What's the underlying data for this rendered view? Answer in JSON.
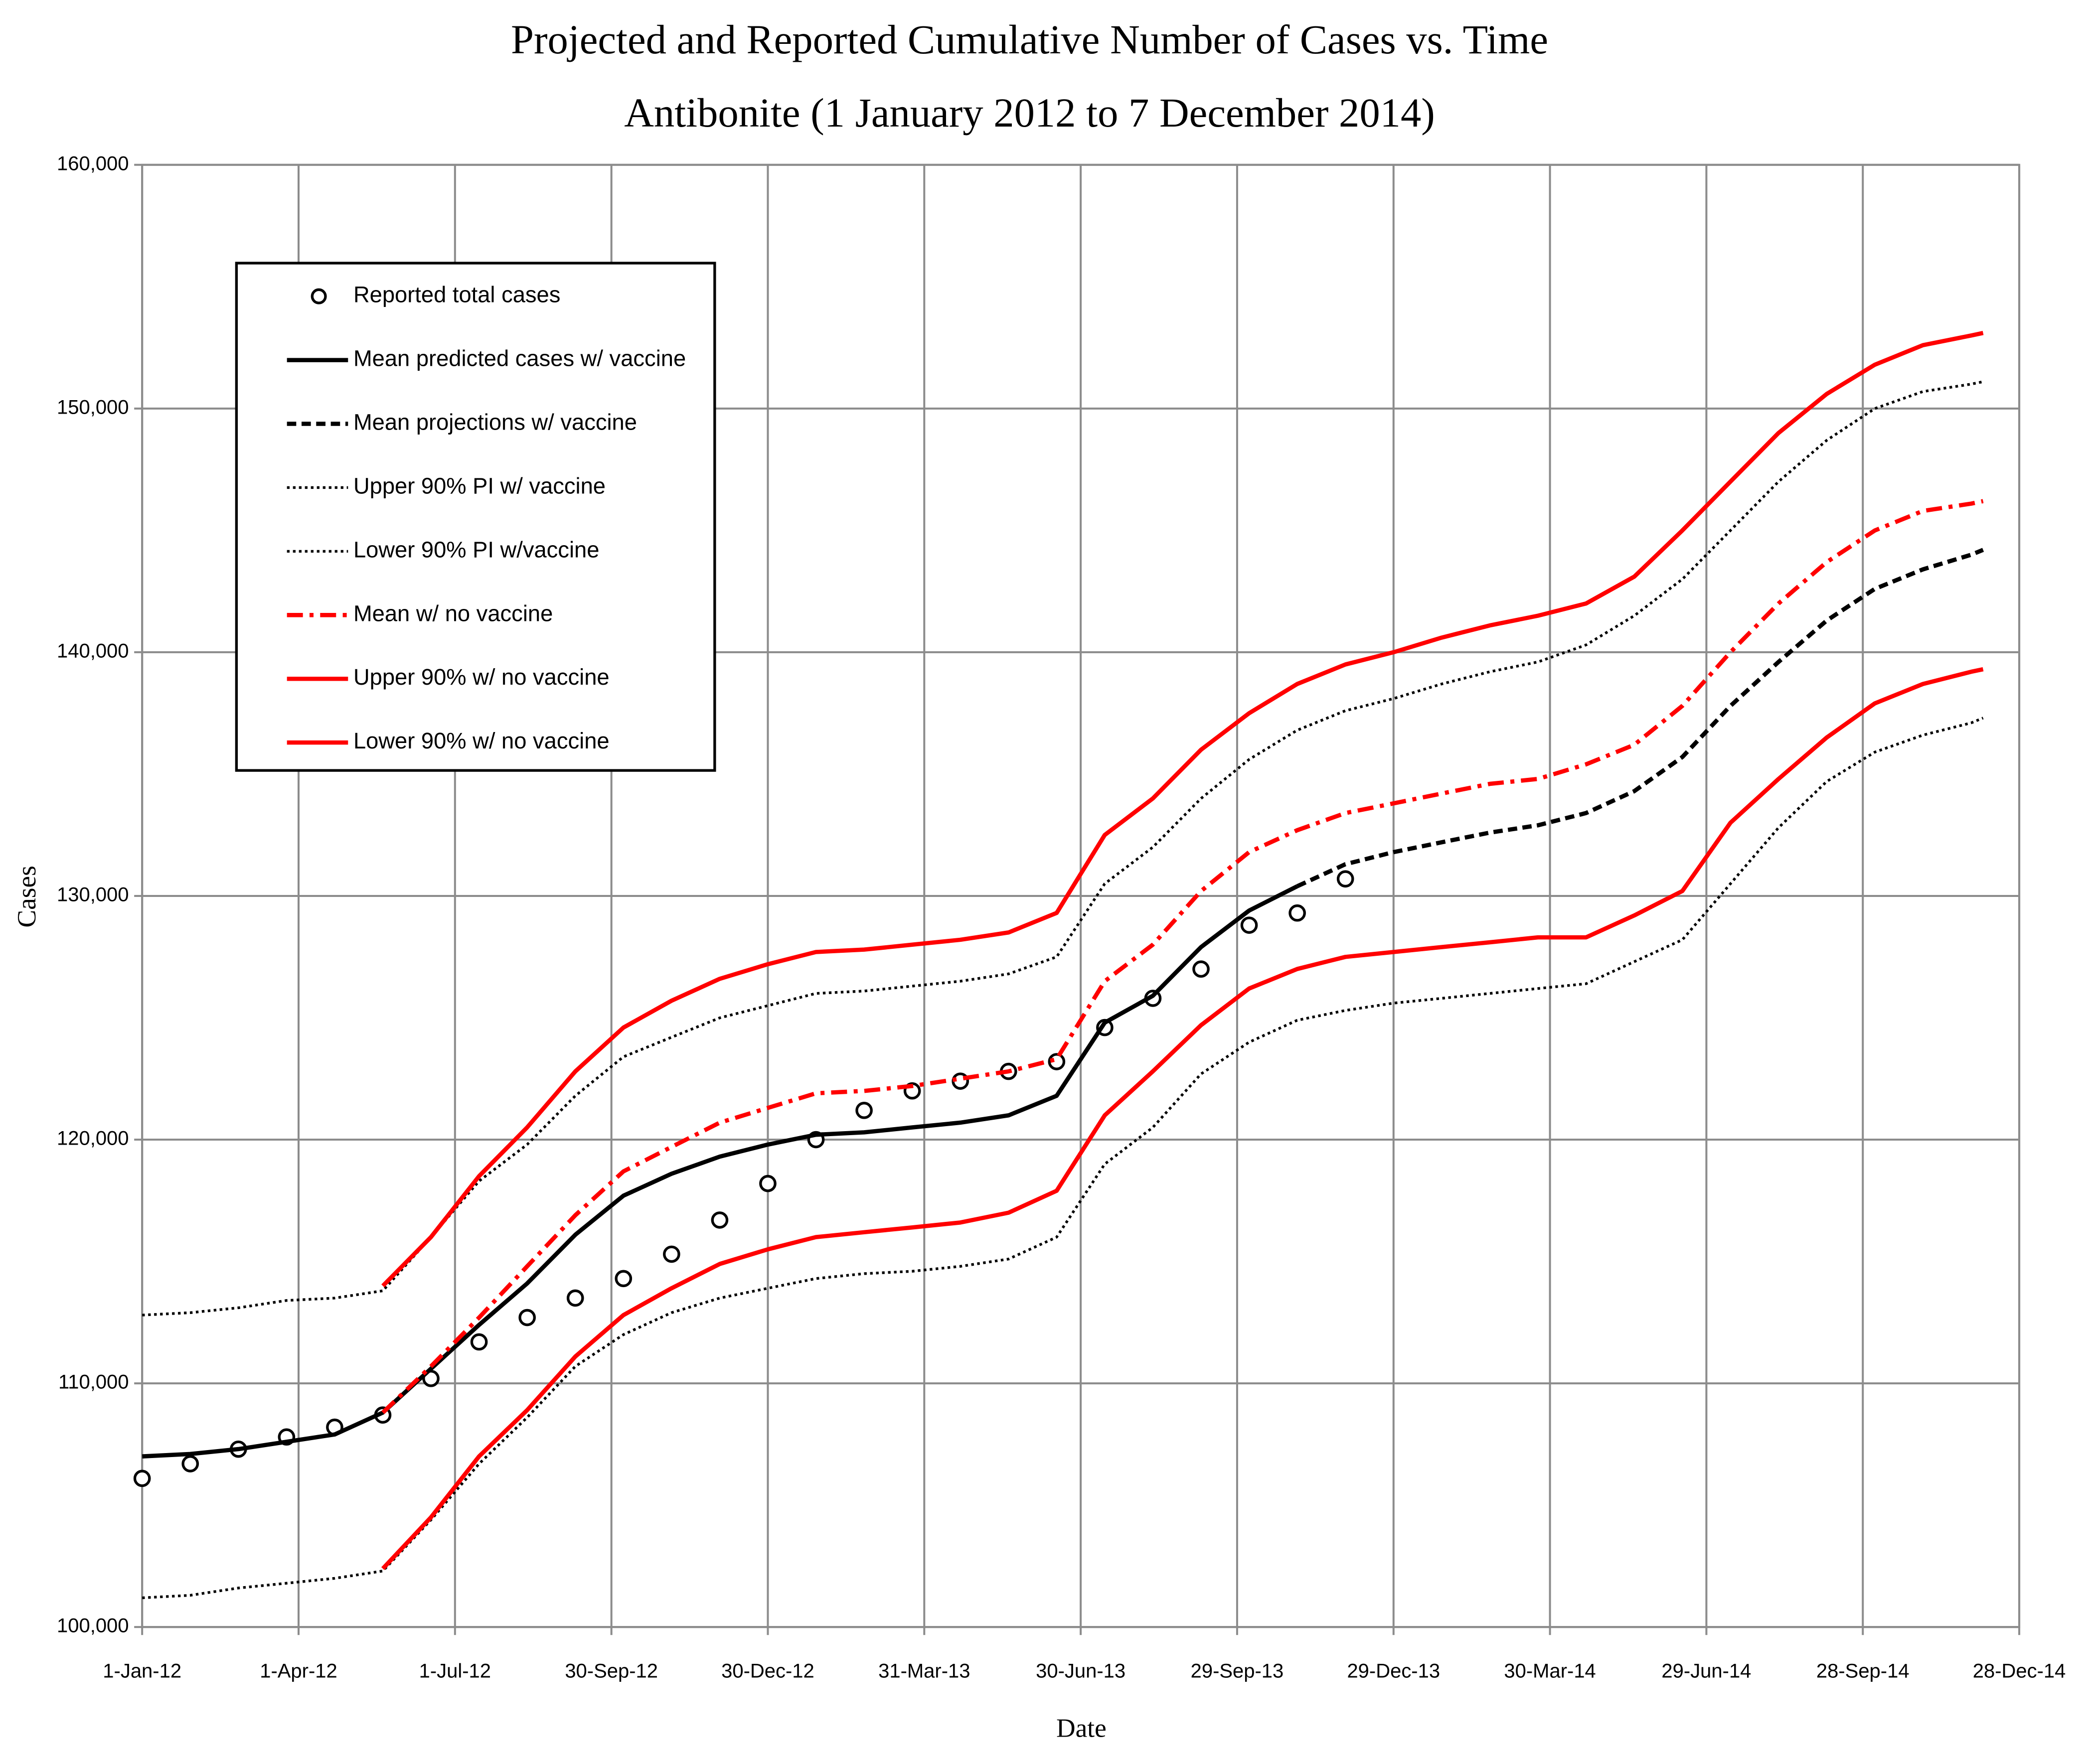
{
  "chart_data": {
    "type": "line",
    "title": "Projected and Reported Cumulative Number of Cases vs. Time",
    "subtitle": "Antibonite (1 January 2012 to 7 December 2014)",
    "x_label": "Date",
    "y_label": "Cases",
    "x": [
      "2012-01-01",
      "2012-01-29",
      "2012-02-26",
      "2012-03-25",
      "2012-04-22",
      "2012-05-20",
      "2012-06-17",
      "2012-07-15",
      "2012-08-12",
      "2012-09-09",
      "2012-10-07",
      "2012-11-04",
      "2012-12-02",
      "2012-12-30",
      "2013-01-27",
      "2013-02-24",
      "2013-03-24",
      "2013-04-21",
      "2013-05-19",
      "2013-06-16",
      "2013-07-14",
      "2013-08-11",
      "2013-09-08",
      "2013-10-06",
      "2013-11-03",
      "2013-12-01",
      "2013-12-29",
      "2014-01-26",
      "2014-02-23",
      "2014-03-23",
      "2014-04-20",
      "2014-05-18",
      "2014-06-15",
      "2014-07-13",
      "2014-08-10",
      "2014-09-07",
      "2014-10-05",
      "2014-11-02",
      "2014-11-30",
      "2014-12-07"
    ],
    "series": [
      {
        "name": "Reported total cases",
        "color": "#000000",
        "style": "markers",
        "values": [
          106100,
          106700,
          107300,
          107800,
          108200,
          108700,
          110200,
          111700,
          112700,
          113500,
          114300,
          115300,
          116700,
          118200,
          120000,
          121200,
          122000,
          122400,
          122800,
          123200,
          124600,
          125800,
          127000,
          128800,
          129300,
          130700,
          null,
          null,
          null,
          null,
          null,
          null,
          null,
          null,
          null,
          null,
          null,
          null,
          null,
          null
        ]
      },
      {
        "name": "Mean predicted cases w/ vaccine",
        "color": "#000000",
        "style": "solid",
        "values": [
          107000,
          107100,
          107300,
          107600,
          107900,
          108800,
          110600,
          112400,
          114100,
          116100,
          117700,
          118600,
          119300,
          119800,
          120200,
          120300,
          120500,
          120700,
          121000,
          121800,
          124800,
          125900,
          127900,
          129400,
          130400,
          null,
          null,
          null,
          null,
          null,
          null,
          null,
          null,
          null,
          null,
          null,
          null,
          null,
          null,
          null
        ]
      },
      {
        "name": "Mean projections w/ vaccine",
        "color": "#000000",
        "style": "dashed",
        "values": [
          null,
          null,
          null,
          null,
          null,
          null,
          null,
          null,
          null,
          null,
          null,
          null,
          null,
          null,
          null,
          null,
          null,
          null,
          null,
          null,
          null,
          null,
          null,
          null,
          130400,
          131300,
          131800,
          132200,
          132600,
          132900,
          133400,
          134300,
          135700,
          137800,
          139600,
          141300,
          142600,
          143400,
          144000,
          144200
        ]
      },
      {
        "name": "Upper 90% PI w/ vaccine",
        "color": "#000000",
        "style": "dotted",
        "values": [
          112800,
          112900,
          113100,
          113400,
          113500,
          113800,
          116000,
          118300,
          119800,
          121800,
          123400,
          124200,
          125000,
          125500,
          126000,
          126100,
          126300,
          126500,
          126800,
          127500,
          130500,
          132000,
          134000,
          135600,
          136800,
          137600,
          138100,
          138700,
          139200,
          139600,
          140300,
          141500,
          143000,
          145000,
          147000,
          148700,
          150000,
          150700,
          151000,
          151100
        ]
      },
      {
        "name": "Lower 90% PI w/vaccine",
        "color": "#000000",
        "style": "dotted",
        "values": [
          101200,
          101300,
          101600,
          101800,
          102000,
          102300,
          104400,
          106700,
          108600,
          110700,
          112000,
          112900,
          113500,
          113900,
          114300,
          114500,
          114600,
          114800,
          115100,
          116000,
          119000,
          120500,
          122700,
          124000,
          124900,
          125300,
          125600,
          125800,
          126000,
          126200,
          126400,
          127300,
          128200,
          130500,
          132800,
          134700,
          135900,
          136600,
          137100,
          137300
        ]
      },
      {
        "name": "Mean w/ no vaccine",
        "color": "#ff0000",
        "style": "dashdot",
        "values": [
          null,
          null,
          null,
          null,
          null,
          108800,
          110700,
          112700,
          114800,
          116900,
          118700,
          119700,
          120700,
          121300,
          121900,
          122000,
          122200,
          122500,
          122800,
          123300,
          126500,
          128000,
          130200,
          131800,
          132700,
          133400,
          133800,
          134200,
          134600,
          134800,
          135400,
          136200,
          137800,
          140000,
          142000,
          143700,
          145000,
          145800,
          146100,
          146200
        ]
      },
      {
        "name": "Upper 90% w/ no vaccine",
        "color": "#ff0000",
        "style": "solid",
        "values": [
          null,
          null,
          null,
          null,
          null,
          114000,
          116000,
          118500,
          120500,
          122800,
          124600,
          125700,
          126600,
          127200,
          127700,
          127800,
          128000,
          128200,
          128500,
          129300,
          132500,
          134000,
          136000,
          137500,
          138700,
          139500,
          140000,
          140600,
          141100,
          141500,
          142000,
          143100,
          145000,
          147000,
          149000,
          150600,
          151800,
          152600,
          153000,
          153100
        ]
      },
      {
        "name": "Lower 90% w/ no vaccine",
        "color": "#ff0000",
        "style": "solid",
        "values": [
          null,
          null,
          null,
          null,
          null,
          102400,
          104500,
          107000,
          108900,
          111100,
          112800,
          113900,
          114900,
          115500,
          116000,
          116200,
          116400,
          116600,
          117000,
          117900,
          121000,
          122800,
          124700,
          126200,
          127000,
          127500,
          127700,
          127900,
          128100,
          128300,
          128300,
          129200,
          130200,
          133000,
          134800,
          136500,
          137900,
          138700,
          139200,
          139300
        ]
      }
    ],
    "xlim": [
      "2012-01-01",
      "2014-12-28"
    ],
    "xticks": [
      {
        "value": "2012-01-01",
        "label": "1-Jan-12"
      },
      {
        "value": "2012-04-01",
        "label": "1-Apr-12"
      },
      {
        "value": "2012-07-01",
        "label": "1-Jul-12"
      },
      {
        "value": "2012-09-30",
        "label": "30-Sep-12"
      },
      {
        "value": "2012-12-30",
        "label": "30-Dec-12"
      },
      {
        "value": "2013-03-31",
        "label": "31-Mar-13"
      },
      {
        "value": "2013-06-30",
        "label": "30-Jun-13"
      },
      {
        "value": "2013-09-29",
        "label": "29-Sep-13"
      },
      {
        "value": "2013-12-29",
        "label": "29-Dec-13"
      },
      {
        "value": "2014-03-30",
        "label": "30-Mar-14"
      },
      {
        "value": "2014-06-29",
        "label": "29-Jun-14"
      },
      {
        "value": "2014-09-28",
        "label": "28-Sep-14"
      },
      {
        "value": "2014-12-28",
        "label": "28-Dec-14"
      }
    ],
    "ylim": [
      100000,
      160000
    ],
    "yticks": [
      {
        "value": 100000,
        "label": "100,000"
      },
      {
        "value": 110000,
        "label": "110,000"
      },
      {
        "value": 120000,
        "label": "120,000"
      },
      {
        "value": 130000,
        "label": "130,000"
      },
      {
        "value": 140000,
        "label": "140,000"
      },
      {
        "value": 150000,
        "label": "150,000"
      },
      {
        "value": 160000,
        "label": "160,000"
      }
    ],
    "grid": true,
    "legend": "upper left"
  }
}
